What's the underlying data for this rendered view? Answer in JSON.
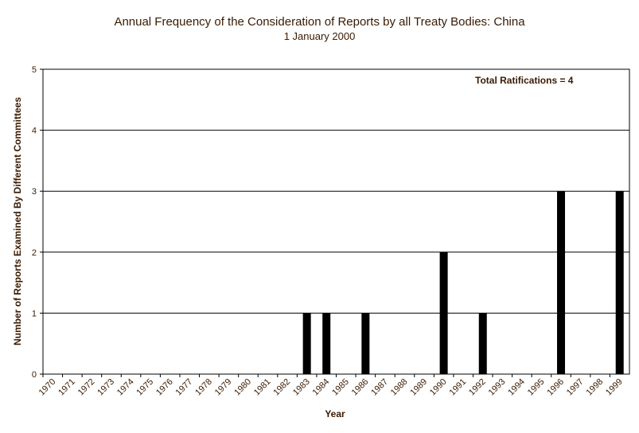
{
  "chart_data": {
    "type": "bar",
    "title": "Annual Frequency of the Consideration of Reports by all Treaty Bodies: China",
    "subtitle": "1 January 2000",
    "xlabel": "Year",
    "ylabel": "Number of Reports Examined By Different Committees",
    "annotation": "Total Ratifications = 4",
    "categories": [
      "1970",
      "1971",
      "1972",
      "1973",
      "1974",
      "1975",
      "1976",
      "1977",
      "1978",
      "1979",
      "1980",
      "1981",
      "1982",
      "1983",
      "1984",
      "1985",
      "1986",
      "1987",
      "1988",
      "1989",
      "1990",
      "1991",
      "1992",
      "1993",
      "1994",
      "1995",
      "1996",
      "1997",
      "1998",
      "1999"
    ],
    "values": [
      0,
      0,
      0,
      0,
      0,
      0,
      0,
      0,
      0,
      0,
      0,
      0,
      0,
      1,
      1,
      0,
      1,
      0,
      0,
      0,
      2,
      0,
      1,
      0,
      0,
      0,
      3,
      0,
      0,
      3
    ],
    "ylim": [
      0,
      5
    ],
    "yticks": [
      0,
      1,
      2,
      3,
      4,
      5
    ],
    "grid": true,
    "legend": "none",
    "colors": {
      "bar": "#000000",
      "grid": "#000000",
      "text": "#3a1a00"
    }
  }
}
